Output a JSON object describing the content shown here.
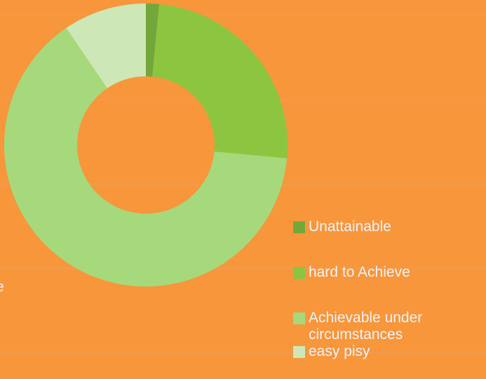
{
  "chart_data": {
    "type": "donut",
    "categories": [
      "Unattainable",
      "hard to Achieve",
      "Achievable under circumstances",
      "easy pisy"
    ],
    "values": [
      1.5,
      25,
      64,
      9.5
    ],
    "colors": [
      "#72a83a",
      "#8cc641",
      "#a6d97c",
      "#cde8b6"
    ],
    "annotation": "e"
  }
}
